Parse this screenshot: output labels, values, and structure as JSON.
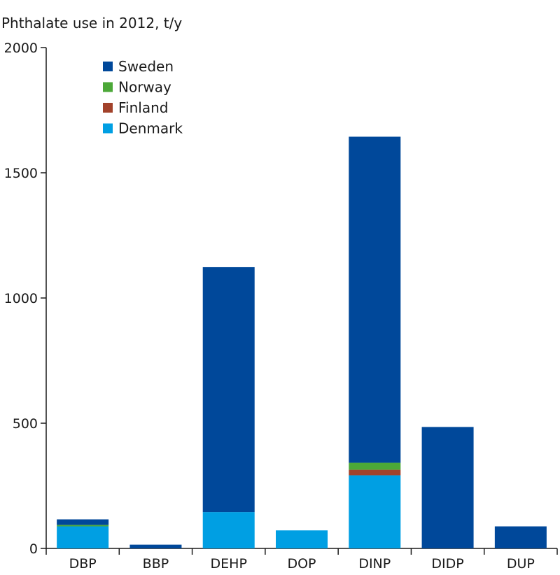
{
  "chart_data": {
    "type": "bar",
    "stacked": true,
    "title": "Phthalate use in 2012, t/y",
    "xlabel": "",
    "ylabel": "",
    "ylim": [
      0,
      2000
    ],
    "yticks": [
      0,
      500,
      1000,
      1500,
      2000
    ],
    "categories": [
      "DBP",
      "BBP",
      "DEHP",
      "DOP",
      "DINP",
      "DIDP",
      "DUP"
    ],
    "series": [
      {
        "name": "Denmark",
        "color": "#009fe3",
        "values": [
          88,
          0,
          145,
          72,
          292,
          0,
          0
        ]
      },
      {
        "name": "Finland",
        "color": "#a2422b",
        "values": [
          0,
          0,
          0,
          0,
          22,
          0,
          0
        ]
      },
      {
        "name": "Norway",
        "color": "#4ca838",
        "values": [
          6,
          0,
          0,
          0,
          28,
          0,
          0
        ]
      },
      {
        "name": "Sweden",
        "color": "#00489a",
        "values": [
          22,
          15,
          978,
          0,
          1302,
          485,
          88
        ]
      }
    ],
    "legend_order": [
      "Sweden",
      "Norway",
      "Finland",
      "Denmark"
    ],
    "legend_position": "top-left",
    "grid": false
  }
}
